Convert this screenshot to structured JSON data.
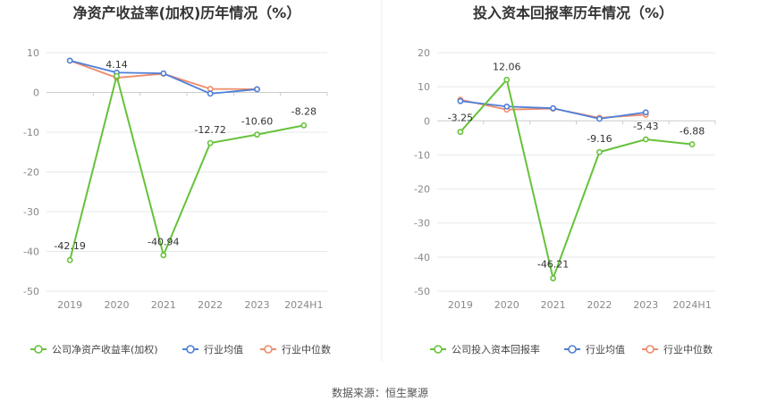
{
  "source": "数据来源：恒生聚源",
  "colors": {
    "company": "#66c23a",
    "industry_avg": "#4e7fd8",
    "industry_median": "#ef8b6a",
    "grid": "#e8e8e8",
    "axis": "#cccccc"
  },
  "chart_data": [
    {
      "type": "line",
      "title": "净资产收益率(加权)历年情况（%）",
      "categories": [
        "2019",
        "2020",
        "2021",
        "2022",
        "2023",
        "2024H1"
      ],
      "ylim": [
        -50,
        10
      ],
      "yticks": [
        10,
        0,
        -10,
        -20,
        -30,
        -40,
        -50
      ],
      "grid": true,
      "legend_position": "bottom",
      "series": [
        {
          "name": "公司净资产收益率(加权)",
          "color_key": "company",
          "values": [
            -42.19,
            4.14,
            -40.94,
            -12.72,
            -10.6,
            -8.28
          ],
          "labels": [
            "-42.19",
            "4.14",
            "-40.94",
            "-12.72",
            "-10.60",
            "-8.28"
          ]
        },
        {
          "name": "行业均值",
          "color_key": "industry_avg",
          "values": [
            8.0,
            5.0,
            4.8,
            -0.3,
            0.8,
            null
          ]
        },
        {
          "name": "行业中位数",
          "color_key": "industry_median",
          "values": [
            8.0,
            3.7,
            4.7,
            0.9,
            0.8,
            null
          ]
        }
      ]
    },
    {
      "type": "line",
      "title": "投入资本回报率历年情况（%）",
      "categories": [
        "2019",
        "2020",
        "2021",
        "2022",
        "2023",
        "2024H1"
      ],
      "ylim": [
        -50,
        20
      ],
      "yticks": [
        20,
        10,
        0,
        -10,
        -20,
        -30,
        -40,
        -50
      ],
      "grid": true,
      "legend_position": "bottom",
      "series": [
        {
          "name": "公司投入资本回报率",
          "color_key": "company",
          "values": [
            -3.25,
            12.06,
            -46.21,
            -9.16,
            -5.43,
            -6.88
          ],
          "labels": [
            "-3.25",
            "12.06",
            "-46.21",
            "-9.16",
            "-5.43",
            "-6.88"
          ]
        },
        {
          "name": "行业均值",
          "color_key": "industry_avg",
          "values": [
            5.8,
            4.2,
            3.7,
            0.6,
            2.5,
            null
          ]
        },
        {
          "name": "行业中位数",
          "color_key": "industry_median",
          "values": [
            6.2,
            3.3,
            3.6,
            0.9,
            1.8,
            null
          ]
        }
      ]
    }
  ]
}
